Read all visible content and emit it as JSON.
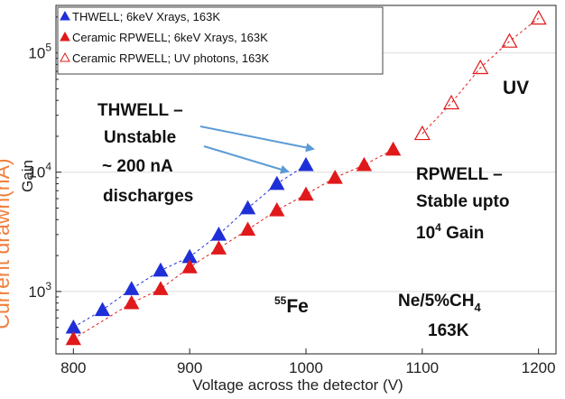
{
  "chart_data": {
    "type": "scatter",
    "title": "",
    "xlabel": "Voltage across the detector (V)",
    "ylabel": "Gain",
    "side_label": "Current drawn(nA)",
    "x_scale": "linear",
    "y_scale": "log",
    "xlim": [
      785,
      1215
    ],
    "ylim": [
      300,
      250000
    ],
    "x_ticks": [
      800,
      900,
      1000,
      1100,
      1200
    ],
    "x_tick_labels": [
      "800",
      "900",
      "1000",
      "1100",
      "1200"
    ],
    "y_ticks": [
      1000,
      10000,
      100000
    ],
    "y_tick_labels": [
      {
        "base": "10",
        "exp": "3"
      },
      {
        "base": "10",
        "exp": "4"
      },
      {
        "base": "10",
        "exp": "5"
      }
    ],
    "grid": "horizontal",
    "legend_position": "top-left",
    "series": [
      {
        "name": "THWELL; 6keV Xrays, 163K",
        "color": "#1f2fd8",
        "marker": "filled-triangle",
        "x": [
          800,
          825,
          850,
          875,
          900,
          925,
          950,
          975,
          1000
        ],
        "y": [
          500,
          700,
          1050,
          1500,
          1950,
          3000,
          5000,
          8000,
          11500
        ]
      },
      {
        "name": "Ceramic RPWELL; 6keV Xrays, 163K",
        "color": "#e0191b",
        "marker": "filled-triangle",
        "x": [
          800,
          850,
          875,
          900,
          925,
          950,
          975,
          1000,
          1025,
          1050,
          1075
        ],
        "y": [
          400,
          800,
          1050,
          1600,
          2300,
          3300,
          4800,
          6500,
          9000,
          11500,
          15500
        ]
      },
      {
        "name": "Ceramic RPWELL; UV photons, 163K",
        "color": "#e0191b",
        "marker": "open-triangle",
        "x": [
          1100,
          1125,
          1150,
          1175,
          1200
        ],
        "y": [
          21000,
          38000,
          75000,
          125000,
          195000
        ]
      }
    ],
    "annotations": {
      "thwell": [
        "THWELL –",
        "Unstable",
        "~ 200 nA",
        "discharges"
      ],
      "rpwell": [
        "RPWELL –",
        "Stable upto"
      ],
      "rpwell_gain": {
        "base": "10",
        "exp": "4",
        "suffix": " Gain"
      },
      "uv": "UV",
      "fe": {
        "sup": "55",
        "main": "Fe"
      },
      "gas": {
        "main": "Ne/5%CH",
        "sub": "4"
      },
      "temp": "163K"
    },
    "colors": {
      "arrow": "#5b9bd5",
      "side_label": "#f07f3c",
      "uv_text": "#e0191b",
      "fe_text": "#e0191b",
      "grid": "#dcdcdc"
    }
  }
}
